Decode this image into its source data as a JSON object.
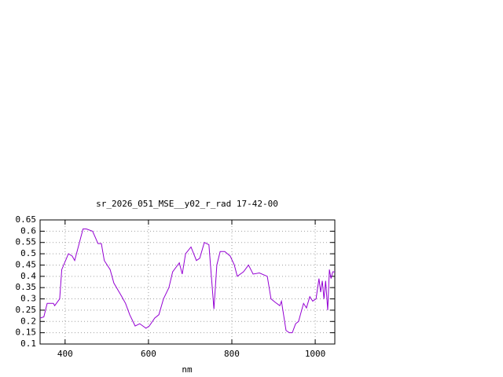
{
  "chart_data": {
    "type": "line",
    "title": "sr_2026_051_MSE__y02_r_rad 17-42-00",
    "x_label": "nm",
    "xlim": [
      340,
      1047
    ],
    "xticks": [
      400,
      600,
      800,
      1000
    ],
    "ylim": [
      0.1,
      0.65
    ],
    "yticks": [
      0.1,
      0.15,
      0.2,
      0.25,
      0.3,
      0.35,
      0.4,
      0.45,
      0.5,
      0.55,
      0.6,
      0.65
    ],
    "grid": true,
    "series": [
      {
        "name": "sr_2026_051_MSE__y02_r_rad 17-42-00",
        "color": "#9400d3",
        "x": [
          340,
          349,
          357,
          372,
          375,
          387,
          392,
          408,
          417,
          423,
          443,
          451,
          466,
          479,
          487,
          494,
          508,
          517,
          536,
          545,
          555,
          568,
          579,
          594,
          602,
          615,
          625,
          636,
          649,
          658,
          674,
          681,
          689,
          702,
          715,
          723,
          734,
          745,
          753,
          757,
          764,
          772,
          783,
          796,
          806,
          813,
          828,
          840,
          851,
          866,
          885,
          894,
          904,
          915,
          919,
          930,
          938,
          945,
          953,
          960,
          972,
          979,
          987,
          994,
          1002,
          1009,
          1013,
          1017,
          1021,
          1025,
          1030,
          1034,
          1038,
          1042,
          1047
        ],
        "values": [
          0.215,
          0.22,
          0.28,
          0.28,
          0.27,
          0.3,
          0.43,
          0.5,
          0.49,
          0.47,
          0.61,
          0.61,
          0.6,
          0.545,
          0.545,
          0.47,
          0.43,
          0.37,
          0.31,
          0.28,
          0.23,
          0.18,
          0.19,
          0.17,
          0.18,
          0.215,
          0.23,
          0.3,
          0.35,
          0.42,
          0.46,
          0.41,
          0.5,
          0.53,
          0.47,
          0.48,
          0.55,
          0.54,
          0.35,
          0.255,
          0.45,
          0.51,
          0.51,
          0.49,
          0.45,
          0.4,
          0.42,
          0.45,
          0.41,
          0.415,
          0.4,
          0.3,
          0.285,
          0.27,
          0.29,
          0.16,
          0.15,
          0.15,
          0.19,
          0.2,
          0.28,
          0.26,
          0.31,
          0.29,
          0.3,
          0.39,
          0.33,
          0.38,
          0.3,
          0.38,
          0.25,
          0.43,
          0.39,
          0.42,
          0.42
        ]
      }
    ]
  }
}
